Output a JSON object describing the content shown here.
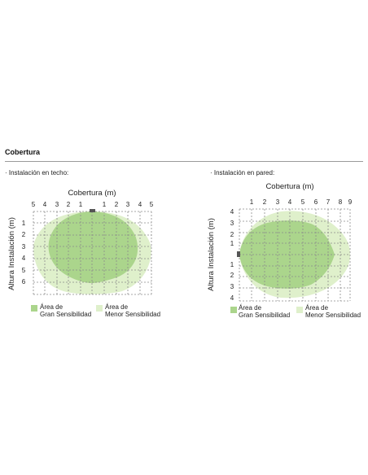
{
  "section": {
    "title": "Cobertura"
  },
  "colors": {
    "high_sensitivity": "#abd58c",
    "low_sensitivity": "#dff0cb",
    "grid": "#8a8a8a",
    "sensor": "#555555"
  },
  "ceiling": {
    "subtitle": "· Instalación en techo:",
    "top_axis_label": "Cobertura (m)",
    "side_axis_label": "Altura Instalación (m)",
    "top_ticks": [
      "5",
      "4",
      "3",
      "2",
      "1",
      "1",
      "2",
      "3",
      "4",
      "5"
    ],
    "side_ticks": [
      "1",
      "2",
      "3",
      "4",
      "5",
      "6"
    ],
    "legend": {
      "high_line1": "Área de",
      "high_line2": "Gran Sensibilidad",
      "low_line1": "Área de",
      "low_line2": "Menor Sensibilidad"
    },
    "icons": {
      "sensor": "sensor-marker-icon"
    }
  },
  "wall": {
    "subtitle": "· Instalación en pared:",
    "top_axis_label": "Cobertura (m)",
    "side_axis_label": "Altura Instalación (m)",
    "top_ticks": [
      "1",
      "2",
      "3",
      "4",
      "5",
      "6",
      "7",
      "8",
      "9"
    ],
    "side_ticks": [
      "4",
      "3",
      "2",
      "1",
      "1",
      "2",
      "3",
      "4"
    ],
    "legend": {
      "high_line1": "Área de",
      "high_line2": "Gran Sensibilidad",
      "low_line1": "Área de",
      "low_line2": "Menor Sensibilidad"
    },
    "icons": {
      "sensor": "sensor-marker-icon"
    }
  }
}
